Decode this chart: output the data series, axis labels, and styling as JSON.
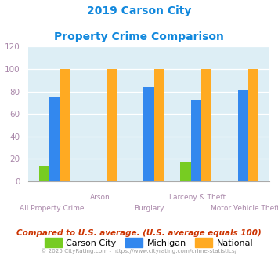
{
  "title_line1": "2019 Carson City",
  "title_line2": "Property Crime Comparison",
  "categories": [
    "All Property Crime",
    "Arson",
    "Burglary",
    "Larceny & Theft",
    "Motor Vehicle Theft"
  ],
  "carson_city": [
    13,
    0,
    0,
    17,
    0
  ],
  "michigan": [
    75,
    0,
    84,
    73,
    81
  ],
  "national": [
    100,
    100,
    100,
    100,
    100
  ],
  "carson_color": "#77cc22",
  "michigan_color": "#3388ee",
  "national_color": "#ffaa22",
  "title_color": "#1188dd",
  "xlabel_color": "#aa88aa",
  "background_color": "#ddeef5",
  "ylim": [
    0,
    120
  ],
  "yticks": [
    0,
    20,
    40,
    60,
    80,
    100,
    120
  ],
  "footer_text": "Compared to U.S. average. (U.S. average equals 100)",
  "copyright_text": "© 2025 CityRating.com - https://www.cityrating.com/crime-statistics/",
  "legend_labels": [
    "Carson City",
    "Michigan",
    "National"
  ],
  "bar_width": 0.22
}
